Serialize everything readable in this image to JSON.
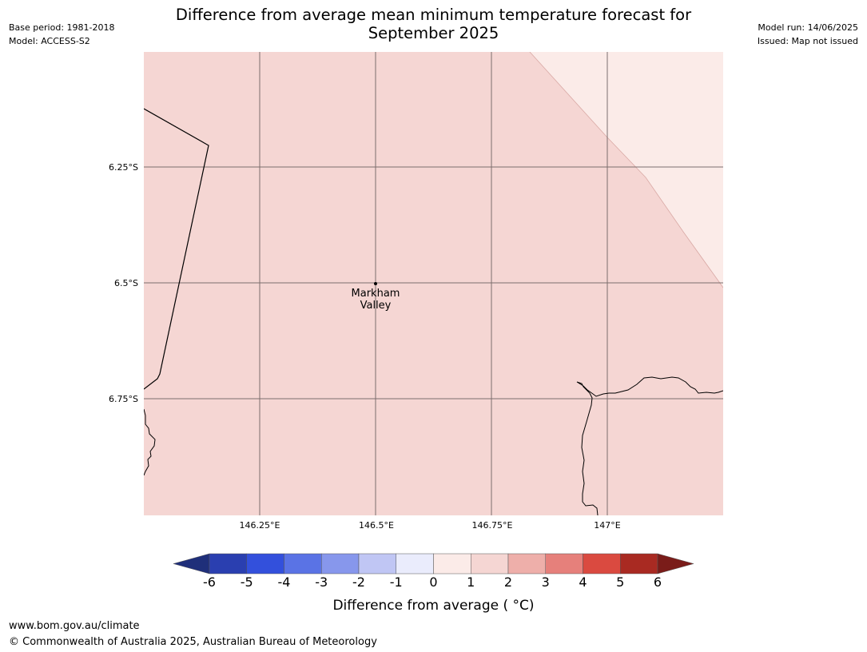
{
  "title": "Difference from average mean minimum temperature forecast for September 2025",
  "meta_left": {
    "base_period": "Base period: 1981-2018",
    "model": "Model: ACCESS-S2"
  },
  "meta_right": {
    "model_run": "Model run: 14/06/2025",
    "issued": "Issued: Map not issued"
  },
  "map": {
    "lat_labels": [
      "6.25°S",
      "6.5°S",
      "6.75°S"
    ],
    "lon_labels": [
      "146.25°E",
      "146.5°E",
      "146.75°E",
      "147°E"
    ],
    "place": {
      "line1": "Markham",
      "line2": "Valley",
      "lon": 146.5,
      "lat": -6.5
    },
    "regions": [
      {
        "name": "1 to 2 °C",
        "fill": "#f5d6d3"
      },
      {
        "name": "0 to 1 °C",
        "fill": "#fbebe8"
      }
    ]
  },
  "colorbar": {
    "ticks": [
      "-6",
      "-5",
      "-4",
      "-3",
      "-2",
      "-1",
      "0",
      "1",
      "2",
      "3",
      "4",
      "5",
      "6"
    ],
    "extend_min_color": "#1f2f7a",
    "extend_max_color": "#7a1c19",
    "colors": [
      "#2a3fb0",
      "#3350dc",
      "#5a73e5",
      "#8797ec",
      "#c0c6f4",
      "#eaecfc",
      "#fbebe8",
      "#f5d6d3",
      "#eeafaa",
      "#e6807b",
      "#da4a40",
      "#a92a22"
    ],
    "label": "Difference from average ( °C)"
  },
  "footer": {
    "url": "www.bom.gov.au/climate",
    "copyright": "© Commonwealth of Australia 2025, Australian Bureau of Meteorology"
  }
}
